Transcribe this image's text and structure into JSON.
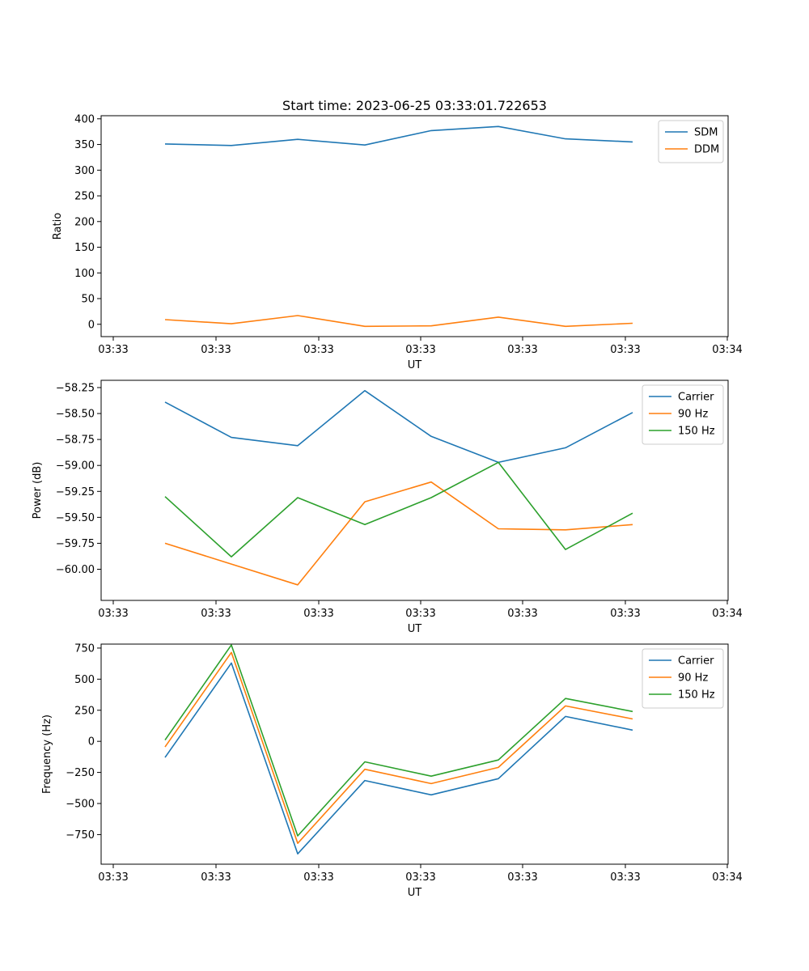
{
  "chart_data": [
    {
      "type": "line",
      "title": "Start time: 2023-06-25 03:33:01.722653",
      "xlabel": "UT",
      "ylabel": "Ratio",
      "x_tick_labels": [
        "03:33",
        "03:33",
        "03:33",
        "03:33",
        "03:33",
        "03:33",
        "03:34"
      ],
      "y_ticks": [
        0,
        50,
        100,
        150,
        200,
        250,
        300,
        350,
        400
      ],
      "y_tick_labels": [
        "0",
        "50",
        "100",
        "150",
        "200",
        "250",
        "300",
        "350",
        "400"
      ],
      "ylim": [
        -24,
        406
      ],
      "legend_position": "top-right",
      "series": [
        {
          "name": "SDM",
          "color": "#1f77b4",
          "values": [
            351,
            348,
            360,
            349,
            377,
            385,
            361,
            355
          ]
        },
        {
          "name": "DDM",
          "color": "#ff7f0e",
          "values": [
            9,
            1,
            17,
            -4,
            -3,
            14,
            -4,
            2
          ]
        }
      ]
    },
    {
      "type": "line",
      "title": "",
      "xlabel": "UT",
      "ylabel": "Power (dB)",
      "x_tick_labels": [
        "03:33",
        "03:33",
        "03:33",
        "03:33",
        "03:33",
        "03:33",
        "03:34"
      ],
      "y_ticks": [
        -60.0,
        -59.75,
        -59.5,
        -59.25,
        -59.0,
        -58.75,
        -58.5,
        -58.25
      ],
      "y_tick_labels": [
        "−60.00",
        "−59.75",
        "−59.50",
        "−59.25",
        "−59.00",
        "−58.75",
        "−58.50",
        "−58.25"
      ],
      "ylim": [
        -60.3,
        -58.18
      ],
      "legend_position": "top-right",
      "series": [
        {
          "name": "Carrier",
          "color": "#1f77b4",
          "values": [
            -58.39,
            -58.73,
            -58.81,
            -58.28,
            -58.72,
            -58.97,
            -58.83,
            -58.49
          ]
        },
        {
          "name": "90 Hz",
          "color": "#ff7f0e",
          "values": [
            -59.75,
            -59.95,
            -60.15,
            -59.35,
            -59.16,
            -59.61,
            -59.62,
            -59.57
          ]
        },
        {
          "name": "150 Hz",
          "color": "#2ca02c",
          "values": [
            -59.3,
            -59.88,
            -59.31,
            -59.57,
            -59.31,
            -58.97,
            -59.81,
            -59.46
          ]
        }
      ]
    },
    {
      "type": "line",
      "title": "",
      "xlabel": "UT",
      "ylabel": "Frequency (Hz)",
      "x_tick_labels": [
        "03:33",
        "03:33",
        "03:33",
        "03:33",
        "03:33",
        "03:33",
        "03:34"
      ],
      "y_ticks": [
        -750,
        -500,
        -250,
        0,
        250,
        500,
        750
      ],
      "y_tick_labels": [
        "−750",
        "−500",
        "−250",
        "0",
        "250",
        "500",
        "750"
      ],
      "ylim": [
        -988,
        782
      ],
      "legend_position": "top-right",
      "series": [
        {
          "name": "Carrier",
          "color": "#1f77b4",
          "values": [
            -130,
            630,
            -905,
            -315,
            -430,
            -300,
            200,
            90
          ]
        },
        {
          "name": "90 Hz",
          "color": "#ff7f0e",
          "values": [
            -45,
            715,
            -820,
            -225,
            -340,
            -210,
            285,
            180
          ]
        },
        {
          "name": "150 Hz",
          "color": "#2ca02c",
          "values": [
            10,
            775,
            -760,
            -165,
            -280,
            -150,
            345,
            240
          ]
        }
      ]
    }
  ]
}
